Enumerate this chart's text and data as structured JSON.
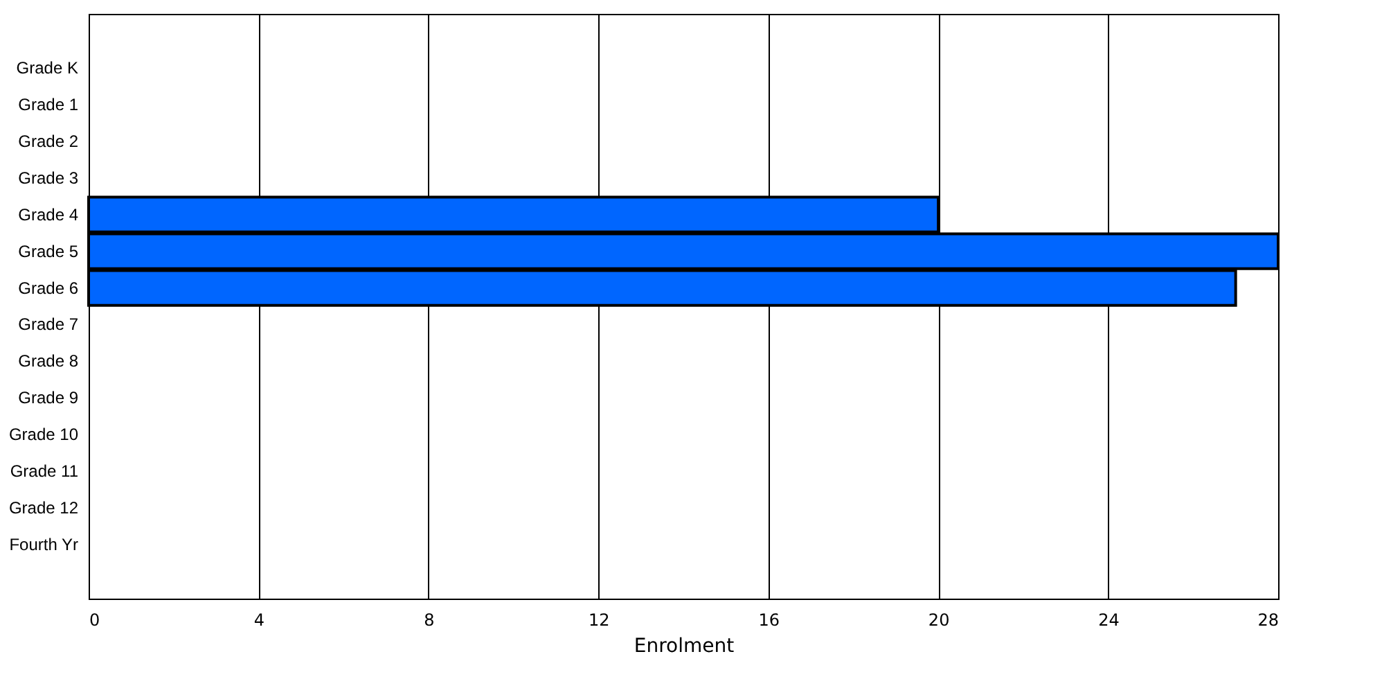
{
  "chart_data": {
    "type": "bar",
    "orientation": "horizontal",
    "xlabel": "Enrolment",
    "categories": [
      "Grade K",
      "Grade 1",
      "Grade 2",
      "Grade 3",
      "Grade 4",
      "Grade 5",
      "Grade 6",
      "Grade 7",
      "Grade 8",
      "Grade 9",
      "Grade 10",
      "Grade 11",
      "Grade 12",
      "Fourth Yr"
    ],
    "values": [
      0,
      0,
      0,
      0,
      20,
      28,
      27,
      0,
      0,
      0,
      0,
      0,
      0,
      0
    ],
    "color": "#0066ff",
    "xlim": [
      0,
      28
    ],
    "xticks": [
      0,
      4,
      8,
      12,
      16,
      20,
      24,
      28
    ],
    "grid": "x"
  }
}
